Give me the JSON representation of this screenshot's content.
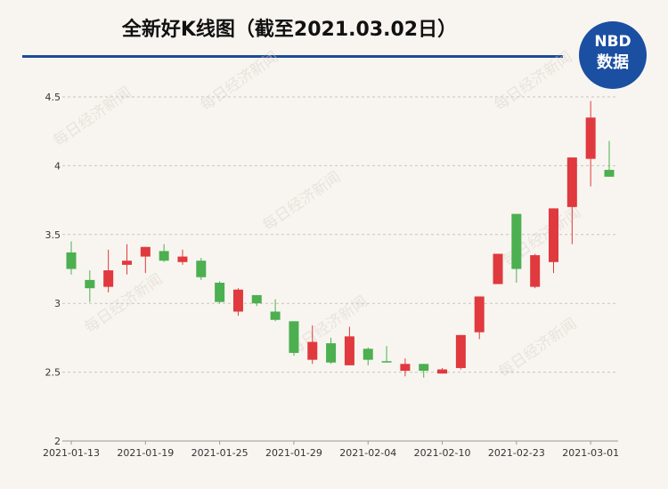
{
  "chart_data": {
    "type": "candlestick",
    "title": "全新好K线图（截至2021.03.02日）",
    "logo": {
      "top": "NBD",
      "bottom": "数据"
    },
    "watermark": "每日经济新闻",
    "categories": [
      "2021-01-13",
      null,
      null,
      null,
      "2021-01-19",
      null,
      null,
      null,
      "2021-01-25",
      null,
      null,
      null,
      "2021-01-29",
      null,
      null,
      null,
      "2021-02-04",
      null,
      null,
      null,
      "2021-02-10",
      null,
      null,
      null,
      "2021-02-23",
      null,
      null,
      null,
      "2021-03-01",
      null
    ],
    "open": [
      3.37,
      3.17,
      3.12,
      3.28,
      3.34,
      3.38,
      3.3,
      3.31,
      3.15,
      2.94,
      3.06,
      2.94,
      2.87,
      2.59,
      2.71,
      2.55,
      2.67,
      2.58,
      2.51,
      2.56,
      2.49,
      2.53,
      2.79,
      3.14,
      3.65,
      3.12,
      3.3,
      3.7,
      4.05,
      3.97
    ],
    "high": [
      3.45,
      3.24,
      3.39,
      3.43,
      3.41,
      3.43,
      3.39,
      3.33,
      3.16,
      3.11,
      3.06,
      3.03,
      2.87,
      2.84,
      2.75,
      2.83,
      2.68,
      2.69,
      2.6,
      2.56,
      2.53,
      2.77,
      3.05,
      3.36,
      3.65,
      3.36,
      3.69,
      4.06,
      4.47,
      4.18
    ],
    "low": [
      3.21,
      3.01,
      3.08,
      3.21,
      3.22,
      3.3,
      3.28,
      3.17,
      3.0,
      2.91,
      2.98,
      2.87,
      2.62,
      2.56,
      2.56,
      2.55,
      2.55,
      2.57,
      2.47,
      2.46,
      2.49,
      2.52,
      2.74,
      3.14,
      3.15,
      3.11,
      3.22,
      3.43,
      3.85,
      3.92
    ],
    "close": [
      3.25,
      3.11,
      3.24,
      3.31,
      3.41,
      3.31,
      3.34,
      3.19,
      3.01,
      3.1,
      3.0,
      2.88,
      2.64,
      2.72,
      2.57,
      2.76,
      2.59,
      2.57,
      2.56,
      2.51,
      2.52,
      2.77,
      3.05,
      3.36,
      3.25,
      3.35,
      3.69,
      4.06,
      4.35,
      3.92
    ],
    "up_color": "#e0393e",
    "down_color": "#4caf50",
    "ylim": [
      2,
      4.5
    ],
    "yticks": [
      2,
      2.5,
      3,
      3.5,
      4,
      4.5
    ],
    "grid": true
  }
}
